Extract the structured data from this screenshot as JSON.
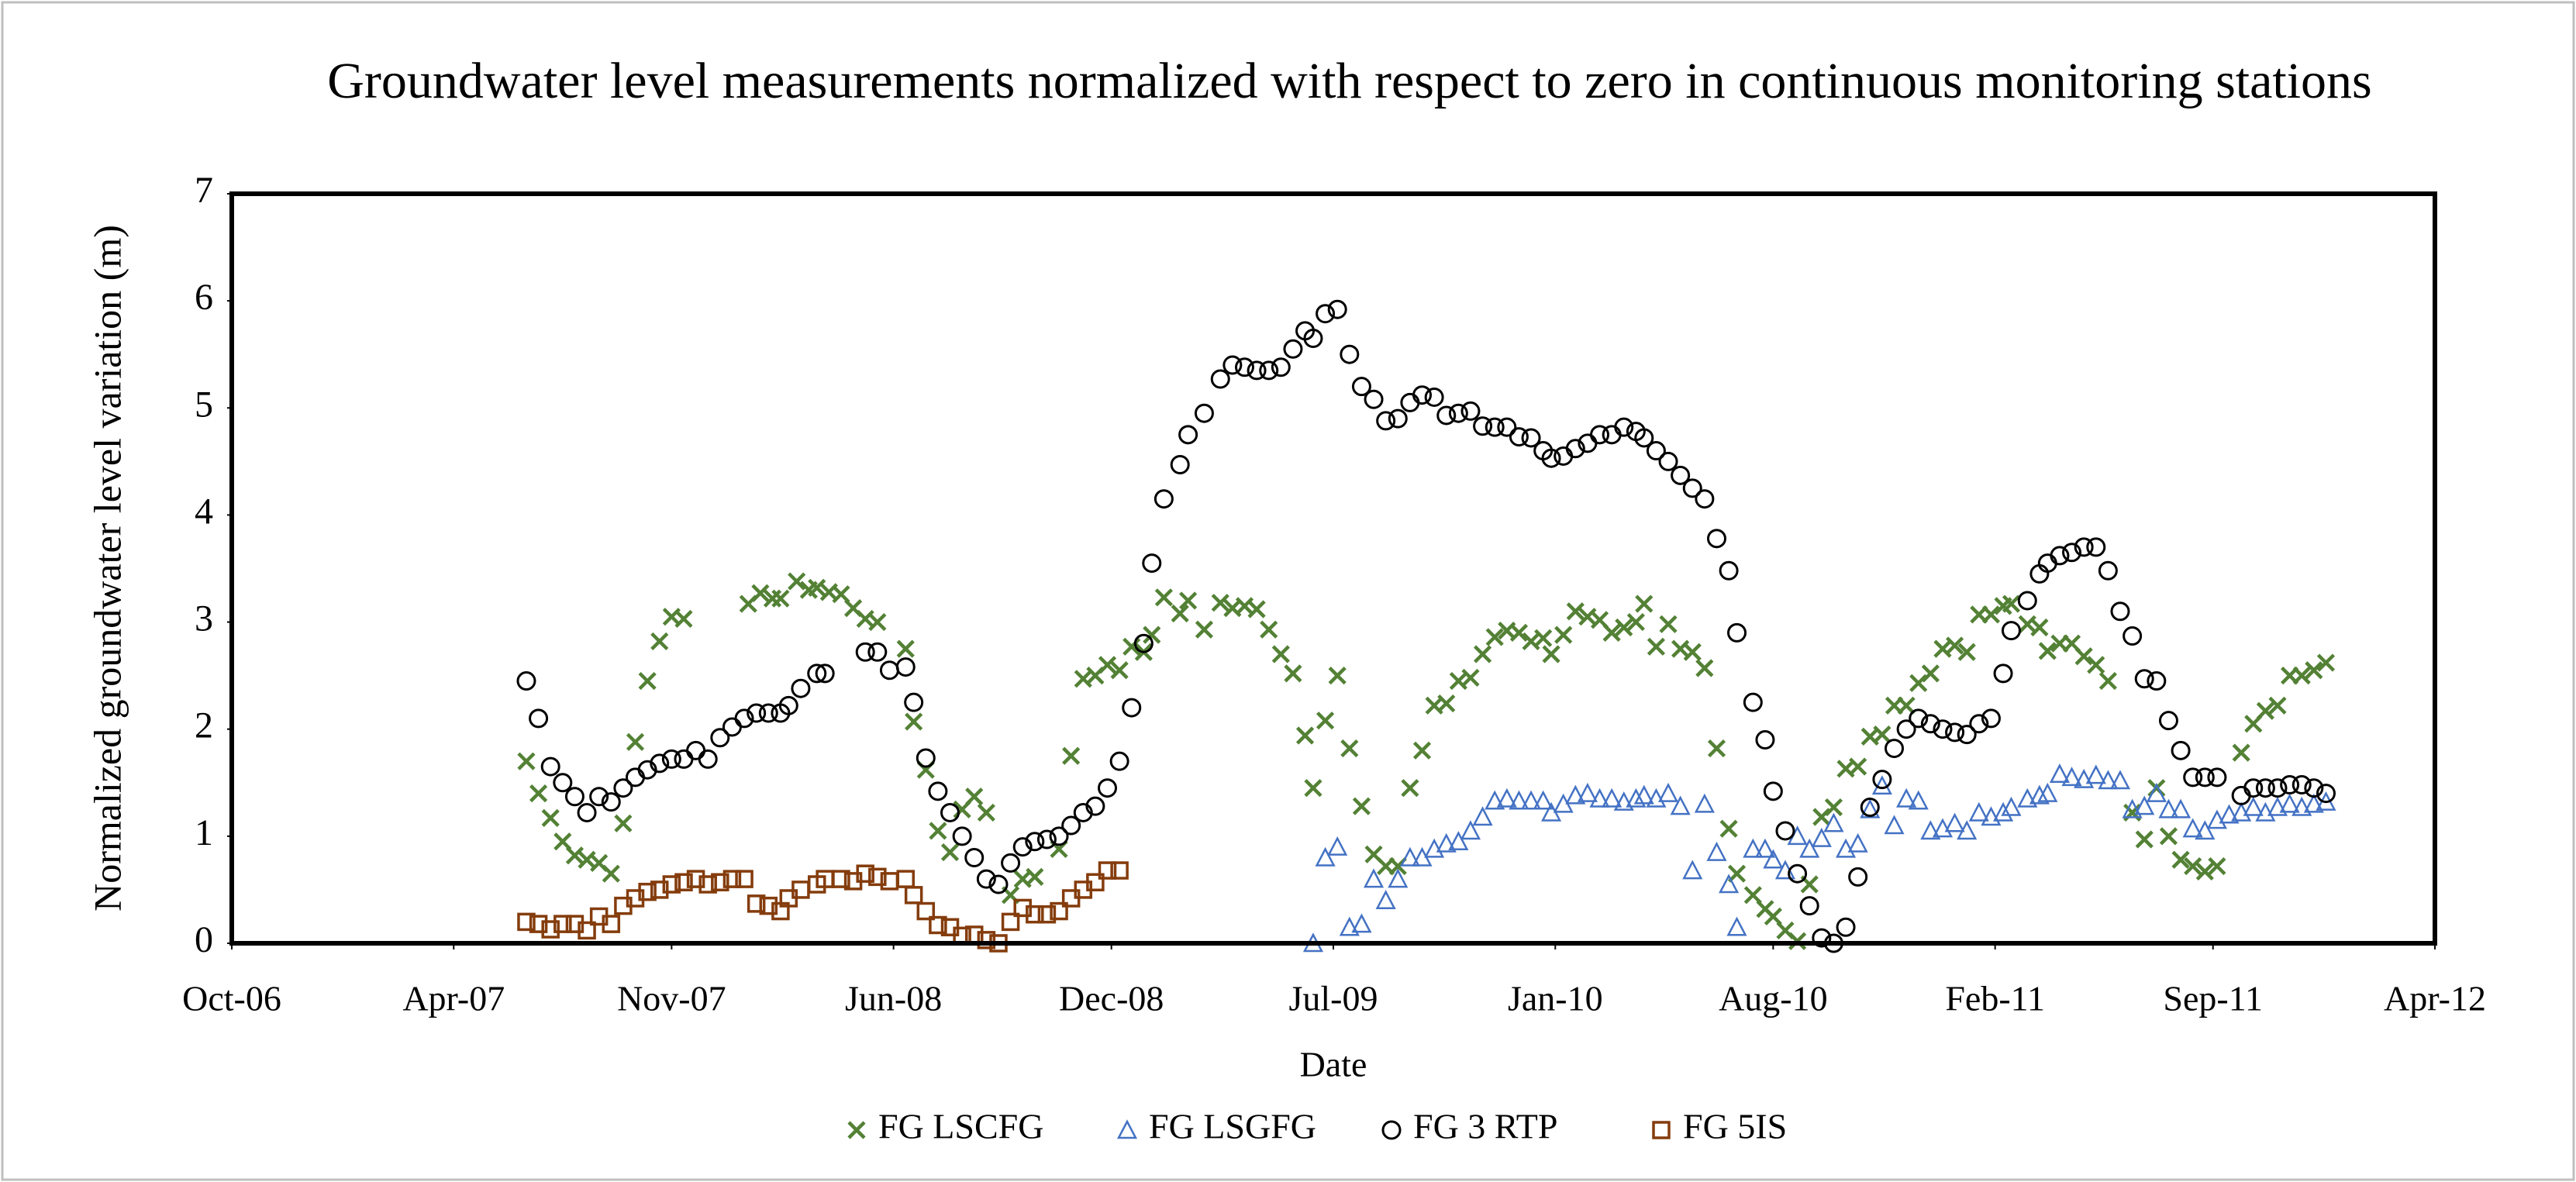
{
  "chart_data": {
    "type": "scatter",
    "title": "Groundwater level measurements normalized with respect to zero in continuous monitoring stations",
    "xlabel": "Date",
    "ylabel": "Normalized groundwater level variation (m)",
    "xlim": [
      2006.79,
      2012.25
    ],
    "xticks": [
      {
        "value": 2006.79,
        "label": "Oct-06"
      },
      {
        "value": 2007.34,
        "label": "Apr-07"
      },
      {
        "value": 2007.88,
        "label": "Nov-07"
      },
      {
        "value": 2008.43,
        "label": "Jun-08"
      },
      {
        "value": 2008.97,
        "label": "Dec-08"
      },
      {
        "value": 2009.52,
        "label": "Jul-09"
      },
      {
        "value": 2010.07,
        "label": "Jan-10"
      },
      {
        "value": 2010.61,
        "label": "Aug-10"
      },
      {
        "value": 2011.16,
        "label": "Feb-11"
      },
      {
        "value": 2011.7,
        "label": "Sep-11"
      },
      {
        "value": 2012.25,
        "label": "Apr-12"
      }
    ],
    "ylim": [
      0,
      7
    ],
    "yticks": [
      0,
      1,
      2,
      3,
      4,
      5,
      6,
      7
    ],
    "grid": false,
    "legend": "bottom",
    "series": [
      {
        "name": "FG LSCFG",
        "color": "#538135",
        "marker": "x",
        "x": [
          2007.52,
          2007.55,
          2007.58,
          2007.61,
          2007.64,
          2007.67,
          2007.7,
          2007.73,
          2007.76,
          2007.79,
          2007.82,
          2007.85,
          2007.88,
          2007.91,
          2008.07,
          2008.1,
          2008.13,
          2008.15,
          2008.19,
          2008.22,
          2008.24,
          2008.27,
          2008.3,
          2008.33,
          2008.36,
          2008.39,
          2008.46,
          2008.48,
          2008.51,
          2008.54,
          2008.57,
          2008.6,
          2008.63,
          2008.66,
          2008.72,
          2008.75,
          2008.78,
          2008.84,
          2008.87,
          2008.9,
          2008.93,
          2008.96,
          2008.99,
          2009.02,
          2009.05,
          2009.07,
          2009.1,
          2009.14,
          2009.16,
          2009.2,
          2009.24,
          2009.27,
          2009.3,
          2009.33,
          2009.36,
          2009.39,
          2009.42,
          2009.45,
          2009.47,
          2009.5,
          2009.53,
          2009.56,
          2009.59,
          2009.62,
          2009.65,
          2009.68,
          2009.71,
          2009.74,
          2009.77,
          2009.8,
          2009.83,
          2009.86,
          2009.89,
          2009.92,
          2009.95,
          2009.98,
          2010.01,
          2010.04,
          2010.06,
          2010.09,
          2010.12,
          2010.15,
          2010.18,
          2010.21,
          2010.24,
          2010.27,
          2010.29,
          2010.32,
          2010.35,
          2010.38,
          2010.41,
          2010.44,
          2010.47,
          2010.5,
          2010.52,
          2010.56,
          2010.59,
          2010.61,
          2010.64,
          2010.67,
          2010.7,
          2010.73,
          2010.76,
          2010.79,
          2010.82,
          2010.85,
          2010.88,
          2010.91,
          2010.94,
          2010.97,
          2011.0,
          2011.03,
          2011.06,
          2011.09,
          2011.12,
          2011.15,
          2011.18,
          2011.2,
          2011.24,
          2011.27,
          2011.29,
          2011.32,
          2011.35,
          2011.38,
          2011.41,
          2011.44,
          2011.5,
          2011.53,
          2011.56,
          2011.59,
          2011.62,
          2011.65,
          2011.68,
          2011.71,
          2011.77,
          2011.8,
          2011.83,
          2011.86,
          2011.89,
          2011.92,
          2011.95,
          2011.98
        ],
        "values": [
          1.7,
          1.4,
          1.17,
          0.95,
          0.82,
          0.78,
          0.75,
          0.65,
          1.12,
          1.88,
          2.45,
          2.82,
          3.05,
          3.03,
          3.17,
          3.27,
          3.22,
          3.22,
          3.38,
          3.3,
          3.32,
          3.28,
          3.26,
          3.13,
          3.03,
          3.0,
          2.75,
          2.07,
          1.62,
          1.05,
          0.85,
          1.25,
          1.37,
          1.22,
          0.45,
          0.6,
          0.62,
          0.88,
          1.75,
          2.47,
          2.5,
          2.6,
          2.55,
          2.77,
          2.72,
          2.88,
          3.23,
          3.08,
          3.2,
          2.93,
          3.18,
          3.13,
          3.15,
          3.12,
          2.93,
          2.7,
          2.52,
          1.94,
          1.45,
          2.08,
          2.5,
          1.82,
          1.28,
          0.83,
          0.72,
          0.72,
          1.45,
          1.8,
          2.22,
          2.24,
          2.45,
          2.48,
          2.7,
          2.86,
          2.92,
          2.9,
          2.82,
          2.85,
          2.7,
          2.88,
          3.1,
          3.05,
          3.02,
          2.9,
          2.95,
          3.0,
          3.17,
          2.77,
          2.98,
          2.75,
          2.72,
          2.57,
          1.82,
          1.07,
          0.65,
          0.45,
          0.32,
          0.25,
          0.12,
          0.02,
          0.55,
          1.18,
          1.27,
          1.63,
          1.65,
          1.93,
          1.95,
          2.22,
          2.22,
          2.43,
          2.52,
          2.75,
          2.78,
          2.72,
          3.07,
          3.07,
          3.15,
          3.17,
          2.98,
          2.95,
          2.73,
          2.8,
          2.8,
          2.68,
          2.6,
          2.45,
          1.22,
          0.97,
          1.45,
          1.0,
          0.78,
          0.72,
          0.67,
          0.72,
          1.78,
          2.05,
          2.17,
          2.22,
          2.5,
          2.5,
          2.55,
          2.62
        ]
      },
      {
        "name": "FG LSGFG",
        "color": "#4472c4",
        "marker": "triangle",
        "x": [
          2009.47,
          2009.5,
          2009.53,
          2009.56,
          2009.59,
          2009.62,
          2009.65,
          2009.68,
          2009.71,
          2009.74,
          2009.77,
          2009.8,
          2009.83,
          2009.86,
          2009.89,
          2009.92,
          2009.95,
          2009.98,
          2010.01,
          2010.04,
          2010.06,
          2010.09,
          2010.12,
          2010.15,
          2010.18,
          2010.21,
          2010.24,
          2010.27,
          2010.29,
          2010.32,
          2010.35,
          2010.38,
          2010.41,
          2010.44,
          2010.47,
          2010.5,
          2010.52,
          2010.56,
          2010.59,
          2010.61,
          2010.64,
          2010.67,
          2010.7,
          2010.73,
          2010.76,
          2010.79,
          2010.82,
          2010.85,
          2010.88,
          2010.91,
          2010.94,
          2010.97,
          2011.0,
          2011.03,
          2011.06,
          2011.09,
          2011.12,
          2011.15,
          2011.18,
          2011.2,
          2011.24,
          2011.27,
          2011.29,
          2011.32,
          2011.35,
          2011.38,
          2011.41,
          2011.44,
          2011.47,
          2011.5,
          2011.53,
          2011.56,
          2011.59,
          2011.62,
          2011.65,
          2011.68,
          2011.71,
          2011.74,
          2011.77,
          2011.8,
          2011.83,
          2011.86,
          2011.89,
          2011.92,
          2011.95,
          2011.98
        ],
        "values": [
          0.0,
          0.8,
          0.9,
          0.15,
          0.18,
          0.6,
          0.4,
          0.6,
          0.8,
          0.8,
          0.88,
          0.93,
          0.95,
          1.05,
          1.18,
          1.33,
          1.35,
          1.33,
          1.33,
          1.33,
          1.22,
          1.3,
          1.38,
          1.4,
          1.35,
          1.35,
          1.32,
          1.35,
          1.38,
          1.35,
          1.4,
          1.28,
          0.68,
          1.3,
          0.85,
          0.55,
          0.15,
          0.88,
          0.88,
          0.78,
          0.68,
          1.0,
          0.88,
          0.98,
          1.12,
          0.88,
          0.93,
          1.25,
          1.47,
          1.1,
          1.35,
          1.33,
          1.05,
          1.07,
          1.12,
          1.05,
          1.22,
          1.18,
          1.22,
          1.27,
          1.35,
          1.38,
          1.4,
          1.58,
          1.55,
          1.53,
          1.57,
          1.52,
          1.52,
          1.25,
          1.28,
          1.4,
          1.25,
          1.25,
          1.07,
          1.05,
          1.15,
          1.2,
          1.22,
          1.27,
          1.22,
          1.27,
          1.3,
          1.27,
          1.3,
          1.32
        ]
      },
      {
        "name": "FG 3 RTP",
        "color": "#000000",
        "marker": "circle",
        "x": [
          2007.52,
          2007.55,
          2007.58,
          2007.61,
          2007.64,
          2007.67,
          2007.7,
          2007.73,
          2007.76,
          2007.79,
          2007.82,
          2007.85,
          2007.88,
          2007.91,
          2007.94,
          2007.97,
          2008.0,
          2008.03,
          2008.06,
          2008.09,
          2008.12,
          2008.15,
          2008.17,
          2008.2,
          2008.24,
          2008.26,
          2008.36,
          2008.39,
          2008.42,
          2008.46,
          2008.48,
          2008.51,
          2008.54,
          2008.57,
          2008.6,
          2008.63,
          2008.66,
          2008.69,
          2008.72,
          2008.75,
          2008.78,
          2008.81,
          2008.84,
          2008.87,
          2008.9,
          2008.93,
          2008.96,
          2008.99,
          2009.02,
          2009.05,
          2009.07,
          2009.1,
          2009.14,
          2009.16,
          2009.2,
          2009.24,
          2009.27,
          2009.3,
          2009.33,
          2009.36,
          2009.39,
          2009.42,
          2009.45,
          2009.47,
          2009.5,
          2009.53,
          2009.56,
          2009.59,
          2009.62,
          2009.65,
          2009.68,
          2009.71,
          2009.74,
          2009.77,
          2009.8,
          2009.83,
          2009.86,
          2009.89,
          2009.92,
          2009.95,
          2009.98,
          2010.01,
          2010.04,
          2010.06,
          2010.09,
          2010.12,
          2010.15,
          2010.18,
          2010.21,
          2010.24,
          2010.27,
          2010.29,
          2010.32,
          2010.35,
          2010.38,
          2010.41,
          2010.44,
          2010.47,
          2010.5,
          2010.52,
          2010.56,
          2010.59,
          2010.61,
          2010.64,
          2010.67,
          2010.7,
          2010.73,
          2010.76,
          2010.79,
          2010.82,
          2010.85,
          2010.88,
          2010.91,
          2010.94,
          2010.97,
          2011.0,
          2011.03,
          2011.06,
          2011.09,
          2011.12,
          2011.15,
          2011.18,
          2011.2,
          2011.24,
          2011.27,
          2011.29,
          2011.32,
          2011.35,
          2011.38,
          2011.41,
          2011.44,
          2011.47,
          2011.5,
          2011.53,
          2011.56,
          2011.59,
          2011.62,
          2011.65,
          2011.68,
          2011.71,
          2011.77,
          2011.8,
          2011.83,
          2011.86,
          2011.89,
          2011.92,
          2011.95,
          2011.98
        ],
        "values": [
          2.45,
          2.1,
          1.65,
          1.5,
          1.37,
          1.22,
          1.37,
          1.32,
          1.45,
          1.55,
          1.62,
          1.68,
          1.72,
          1.72,
          1.8,
          1.72,
          1.92,
          2.02,
          2.1,
          2.15,
          2.15,
          2.15,
          2.22,
          2.38,
          2.52,
          2.52,
          2.72,
          2.72,
          2.55,
          2.58,
          2.25,
          1.73,
          1.42,
          1.22,
          1.0,
          0.8,
          0.6,
          0.55,
          0.75,
          0.9,
          0.95,
          0.97,
          1.0,
          1.1,
          1.22,
          1.28,
          1.45,
          1.7,
          2.2,
          2.8,
          3.55,
          4.15,
          4.47,
          4.75,
          4.95,
          5.27,
          5.4,
          5.38,
          5.35,
          5.35,
          5.38,
          5.55,
          5.72,
          5.65,
          5.88,
          5.92,
          5.5,
          5.2,
          5.08,
          4.88,
          4.9,
          5.05,
          5.12,
          5.1,
          4.93,
          4.95,
          4.97,
          4.83,
          4.82,
          4.82,
          4.73,
          4.72,
          4.6,
          4.53,
          4.55,
          4.62,
          4.67,
          4.75,
          4.75,
          4.82,
          4.78,
          4.72,
          4.6,
          4.5,
          4.37,
          4.25,
          4.15,
          3.78,
          3.48,
          2.9,
          2.25,
          1.9,
          1.42,
          1.05,
          0.65,
          0.35,
          0.05,
          0.0,
          0.15,
          0.62,
          1.27,
          1.53,
          1.82,
          2.0,
          2.1,
          2.05,
          2.0,
          1.97,
          1.95,
          2.05,
          2.1,
          2.52,
          2.92,
          3.2,
          3.45,
          3.55,
          3.62,
          3.65,
          3.7,
          3.7,
          3.48,
          3.1,
          2.87,
          2.47,
          2.45,
          2.08,
          1.8,
          1.55,
          1.55,
          1.55,
          1.38,
          1.45,
          1.45,
          1.45,
          1.48,
          1.48,
          1.45,
          1.4
        ]
      },
      {
        "name": "FG 5IS",
        "color": "#843c0c",
        "marker": "square",
        "x": [
          2007.52,
          2007.55,
          2007.58,
          2007.61,
          2007.64,
          2007.67,
          2007.7,
          2007.73,
          2007.76,
          2007.79,
          2007.82,
          2007.85,
          2007.88,
          2007.91,
          2007.94,
          2007.97,
          2008.0,
          2008.03,
          2008.06,
          2008.09,
          2008.12,
          2008.15,
          2008.17,
          2008.2,
          2008.24,
          2008.26,
          2008.3,
          2008.33,
          2008.36,
          2008.39,
          2008.42,
          2008.46,
          2008.48,
          2008.51,
          2008.54,
          2008.57,
          2008.6,
          2008.63,
          2008.66,
          2008.69,
          2008.72,
          2008.75,
          2008.78,
          2008.81,
          2008.84,
          2008.87,
          2008.9,
          2008.93,
          2008.96,
          2008.99
        ],
        "values": [
          0.2,
          0.18,
          0.13,
          0.18,
          0.18,
          0.12,
          0.25,
          0.18,
          0.35,
          0.42,
          0.48,
          0.5,
          0.55,
          0.57,
          0.6,
          0.55,
          0.57,
          0.6,
          0.6,
          0.37,
          0.35,
          0.3,
          0.42,
          0.5,
          0.55,
          0.6,
          0.6,
          0.58,
          0.65,
          0.62,
          0.58,
          0.6,
          0.45,
          0.3,
          0.17,
          0.15,
          0.07,
          0.08,
          0.03,
          0.0,
          0.2,
          0.33,
          0.27,
          0.27,
          0.3,
          0.42,
          0.5,
          0.57,
          0.68,
          0.68
        ]
      }
    ]
  }
}
